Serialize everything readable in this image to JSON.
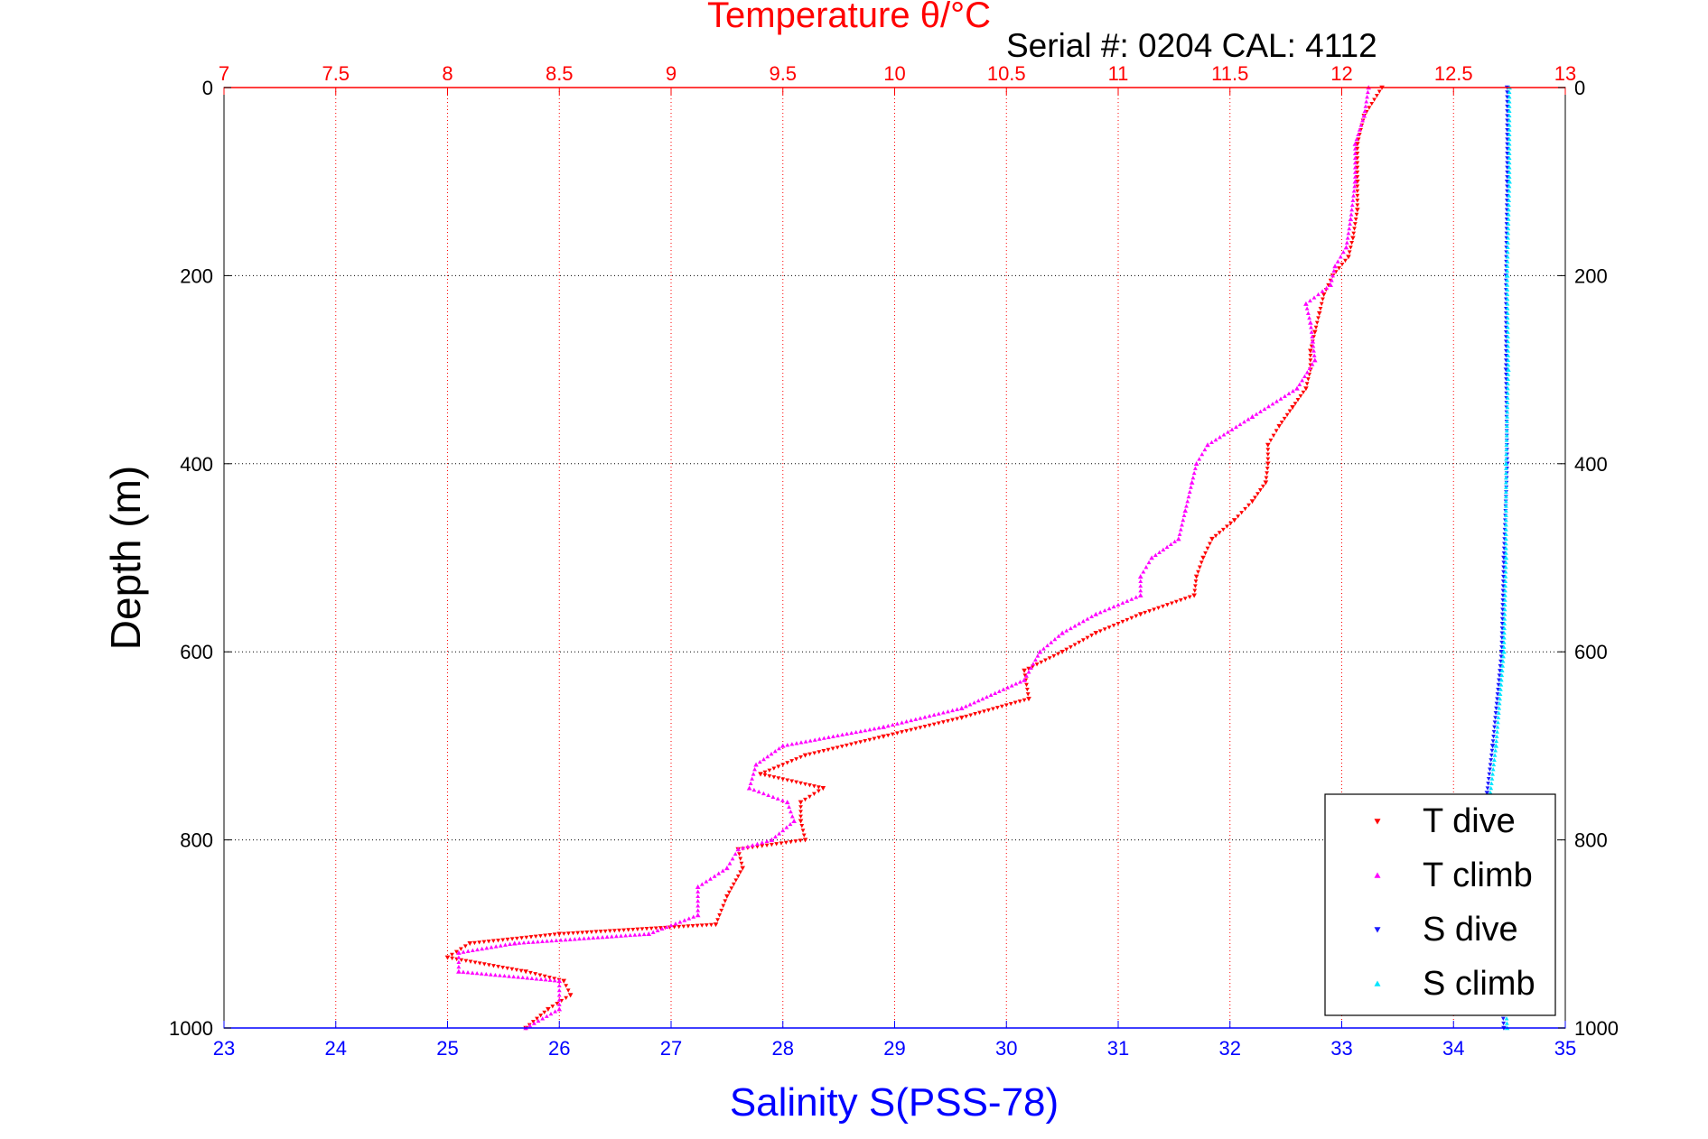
{
  "chart_data": {
    "type": "scatter",
    "title": "Temperature θ/°C",
    "subtitle": "Serial #: 0204  CAL: 4112",
    "ylabel": "Depth (m)",
    "xlabel_bottom": "Salinity S(PSS-78)",
    "xlabel_top": "Temperature θ/°C",
    "ylim": [
      0,
      1000
    ],
    "y_reversed": true,
    "y_ticks": [
      0,
      200,
      400,
      600,
      800,
      1000
    ],
    "x_bottom": {
      "label": "Salinity S(PSS-78)",
      "range": [
        23,
        35
      ],
      "ticks": [
        23,
        24,
        25,
        26,
        27,
        28,
        29,
        30,
        31,
        32,
        33,
        34,
        35
      ],
      "color": "#0000ff"
    },
    "x_top": {
      "label": "Temperature θ/°C",
      "range": [
        7,
        13
      ],
      "ticks": [
        "7",
        "7.5",
        "8",
        "8.5",
        "9",
        "9.5",
        "10",
        "10.5",
        "11",
        "11.5",
        "12",
        "12.5",
        "13"
      ],
      "color": "#ff0000"
    },
    "grid": true,
    "legend_position": "bottom-right",
    "series": [
      {
        "name": "T dive",
        "axis": "top",
        "color": "#ff0000",
        "marker": "triangle-down",
        "points": [
          [
            12.18,
            0
          ],
          [
            12.1,
            30
          ],
          [
            12.07,
            60
          ],
          [
            12.07,
            100
          ],
          [
            12.07,
            130
          ],
          [
            12.05,
            160
          ],
          [
            12.03,
            180
          ],
          [
            11.96,
            200
          ],
          [
            11.92,
            220
          ],
          [
            11.9,
            240
          ],
          [
            11.88,
            260
          ],
          [
            11.86,
            280
          ],
          [
            11.86,
            300
          ],
          [
            11.84,
            320
          ],
          [
            11.78,
            340
          ],
          [
            11.72,
            360
          ],
          [
            11.67,
            380
          ],
          [
            11.67,
            400
          ],
          [
            11.66,
            420
          ],
          [
            11.6,
            440
          ],
          [
            11.52,
            460
          ],
          [
            11.42,
            480
          ],
          [
            11.38,
            500
          ],
          [
            11.35,
            520
          ],
          [
            11.34,
            540
          ],
          [
            11.1,
            560
          ],
          [
            10.9,
            580
          ],
          [
            10.75,
            600
          ],
          [
            10.58,
            620
          ],
          [
            10.6,
            650
          ],
          [
            10.3,
            670
          ],
          [
            9.95,
            690
          ],
          [
            9.6,
            710
          ],
          [
            9.4,
            730
          ],
          [
            9.68,
            745
          ],
          [
            9.58,
            760
          ],
          [
            9.58,
            780
          ],
          [
            9.6,
            800
          ],
          [
            9.3,
            810
          ],
          [
            9.32,
            830
          ],
          [
            9.25,
            860
          ],
          [
            9.2,
            890
          ],
          [
            8.5,
            900
          ],
          [
            8.1,
            910
          ],
          [
            8.0,
            925
          ],
          [
            8.35,
            940
          ],
          [
            8.52,
            950
          ],
          [
            8.55,
            965
          ],
          [
            8.45,
            980
          ],
          [
            8.35,
            1000
          ]
        ]
      },
      {
        "name": "T climb",
        "axis": "top",
        "color": "#ff00ff",
        "marker": "triangle-up",
        "points": [
          [
            12.12,
            0
          ],
          [
            12.1,
            30
          ],
          [
            12.06,
            60
          ],
          [
            12.06,
            100
          ],
          [
            12.04,
            140
          ],
          [
            12.02,
            170
          ],
          [
            11.97,
            190
          ],
          [
            11.95,
            210
          ],
          [
            11.84,
            230
          ],
          [
            11.86,
            250
          ],
          [
            11.87,
            270
          ],
          [
            11.88,
            290
          ],
          [
            11.8,
            320
          ],
          [
            11.6,
            350
          ],
          [
            11.4,
            380
          ],
          [
            11.35,
            400
          ],
          [
            11.33,
            420
          ],
          [
            11.3,
            450
          ],
          [
            11.27,
            480
          ],
          [
            11.15,
            500
          ],
          [
            11.1,
            520
          ],
          [
            11.1,
            540
          ],
          [
            10.9,
            560
          ],
          [
            10.75,
            580
          ],
          [
            10.65,
            600
          ],
          [
            10.58,
            630
          ],
          [
            10.3,
            660
          ],
          [
            9.95,
            680
          ],
          [
            9.5,
            700
          ],
          [
            9.38,
            720
          ],
          [
            9.35,
            745
          ],
          [
            9.52,
            760
          ],
          [
            9.55,
            780
          ],
          [
            9.45,
            800
          ],
          [
            9.3,
            810
          ],
          [
            9.25,
            830
          ],
          [
            9.12,
            850
          ],
          [
            9.12,
            880
          ],
          [
            8.9,
            900
          ],
          [
            8.3,
            910
          ],
          [
            8.05,
            920
          ],
          [
            8.05,
            940
          ],
          [
            8.5,
            950
          ],
          [
            8.5,
            980
          ],
          [
            8.35,
            1000
          ]
        ]
      },
      {
        "name": "S dive",
        "axis": "bottom",
        "color": "#1a1aff",
        "marker": "triangle-down",
        "points": [
          [
            34.48,
            0
          ],
          [
            34.48,
            100
          ],
          [
            34.47,
            200
          ],
          [
            34.47,
            300
          ],
          [
            34.48,
            400
          ],
          [
            34.45,
            500
          ],
          [
            34.43,
            600
          ],
          [
            34.35,
            700
          ],
          [
            34.3,
            750
          ],
          [
            34.32,
            800
          ],
          [
            34.35,
            850
          ],
          [
            34.4,
            900
          ],
          [
            34.45,
            1000
          ]
        ]
      },
      {
        "name": "S climb",
        "axis": "bottom",
        "color": "#00e5ff",
        "marker": "triangle-up",
        "points": [
          [
            34.5,
            0
          ],
          [
            34.5,
            100
          ],
          [
            34.48,
            200
          ],
          [
            34.49,
            300
          ],
          [
            34.47,
            400
          ],
          [
            34.47,
            500
          ],
          [
            34.45,
            600
          ],
          [
            34.38,
            700
          ],
          [
            34.33,
            750
          ],
          [
            34.35,
            800
          ],
          [
            34.4,
            850
          ],
          [
            34.43,
            900
          ],
          [
            34.48,
            1000
          ]
        ]
      }
    ]
  }
}
